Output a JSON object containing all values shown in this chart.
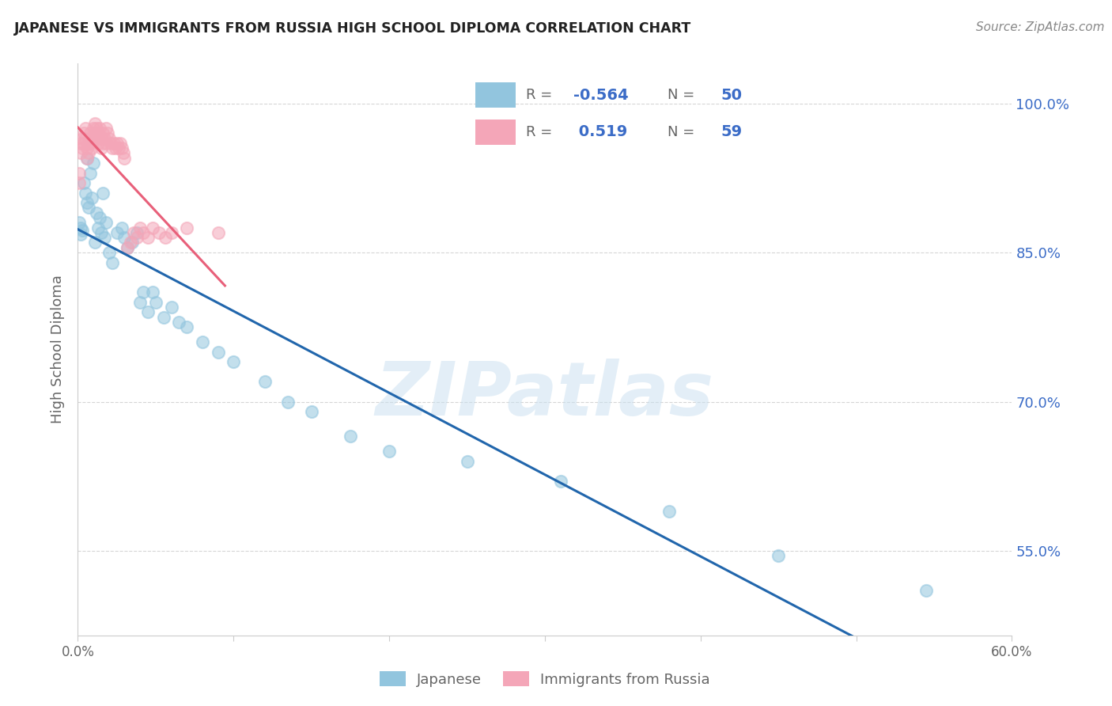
{
  "title": "JAPANESE VS IMMIGRANTS FROM RUSSIA HIGH SCHOOL DIPLOMA CORRELATION CHART",
  "source": "Source: ZipAtlas.com",
  "ylabel": "High School Diploma",
  "xlim": [
    0.0,
    0.6
  ],
  "ylim": [
    0.465,
    1.04
  ],
  "watermark": "ZIPatlas",
  "legend_blue_r": "-0.564",
  "legend_blue_n": "50",
  "legend_pink_r": "0.519",
  "legend_pink_n": "59",
  "blue_color": "#92c5de",
  "pink_color": "#f4a6b8",
  "line_blue_color": "#2166ac",
  "line_pink_color": "#e8607a",
  "text_color": "#3b6cc7",
  "grid_color": "#cccccc",
  "title_color": "#222222",
  "source_color": "#888888",
  "label_color": "#666666",
  "japanese_x": [
    0.001,
    0.002,
    0.002,
    0.003,
    0.004,
    0.005,
    0.006,
    0.006,
    0.007,
    0.008,
    0.009,
    0.01,
    0.011,
    0.012,
    0.013,
    0.014,
    0.015,
    0.016,
    0.017,
    0.018,
    0.02,
    0.022,
    0.025,
    0.028,
    0.03,
    0.032,
    0.035,
    0.038,
    0.04,
    0.042,
    0.045,
    0.048,
    0.05,
    0.055,
    0.06,
    0.065,
    0.07,
    0.08,
    0.09,
    0.1,
    0.12,
    0.135,
    0.15,
    0.175,
    0.2,
    0.25,
    0.31,
    0.38,
    0.45,
    0.545
  ],
  "japanese_y": [
    0.88,
    0.875,
    0.868,
    0.872,
    0.92,
    0.91,
    0.945,
    0.9,
    0.895,
    0.93,
    0.905,
    0.94,
    0.86,
    0.89,
    0.875,
    0.885,
    0.87,
    0.91,
    0.865,
    0.88,
    0.85,
    0.84,
    0.87,
    0.875,
    0.865,
    0.855,
    0.86,
    0.87,
    0.8,
    0.81,
    0.79,
    0.81,
    0.8,
    0.785,
    0.795,
    0.78,
    0.775,
    0.76,
    0.75,
    0.74,
    0.72,
    0.7,
    0.69,
    0.665,
    0.65,
    0.64,
    0.62,
    0.59,
    0.545,
    0.51
  ],
  "russia_x": [
    0.001,
    0.001,
    0.002,
    0.002,
    0.003,
    0.003,
    0.004,
    0.004,
    0.005,
    0.005,
    0.006,
    0.006,
    0.007,
    0.007,
    0.008,
    0.008,
    0.009,
    0.009,
    0.01,
    0.01,
    0.011,
    0.011,
    0.012,
    0.012,
    0.013,
    0.013,
    0.014,
    0.015,
    0.015,
    0.016,
    0.016,
    0.017,
    0.018,
    0.018,
    0.019,
    0.02,
    0.021,
    0.022,
    0.023,
    0.024,
    0.025,
    0.026,
    0.027,
    0.028,
    0.029,
    0.03,
    0.032,
    0.034,
    0.036,
    0.038,
    0.04,
    0.042,
    0.045,
    0.048,
    0.052,
    0.056,
    0.06,
    0.07,
    0.09
  ],
  "russia_y": [
    0.93,
    0.92,
    0.96,
    0.95,
    0.965,
    0.955,
    0.97,
    0.96,
    0.975,
    0.965,
    0.955,
    0.945,
    0.96,
    0.95,
    0.97,
    0.96,
    0.965,
    0.955,
    0.975,
    0.965,
    0.98,
    0.97,
    0.975,
    0.965,
    0.97,
    0.96,
    0.975,
    0.965,
    0.955,
    0.97,
    0.96,
    0.965,
    0.975,
    0.96,
    0.97,
    0.965,
    0.96,
    0.955,
    0.96,
    0.955,
    0.96,
    0.955,
    0.96,
    0.955,
    0.95,
    0.945,
    0.855,
    0.86,
    0.87,
    0.865,
    0.875,
    0.87,
    0.865,
    0.875,
    0.87,
    0.865,
    0.87,
    0.875,
    0.87
  ]
}
